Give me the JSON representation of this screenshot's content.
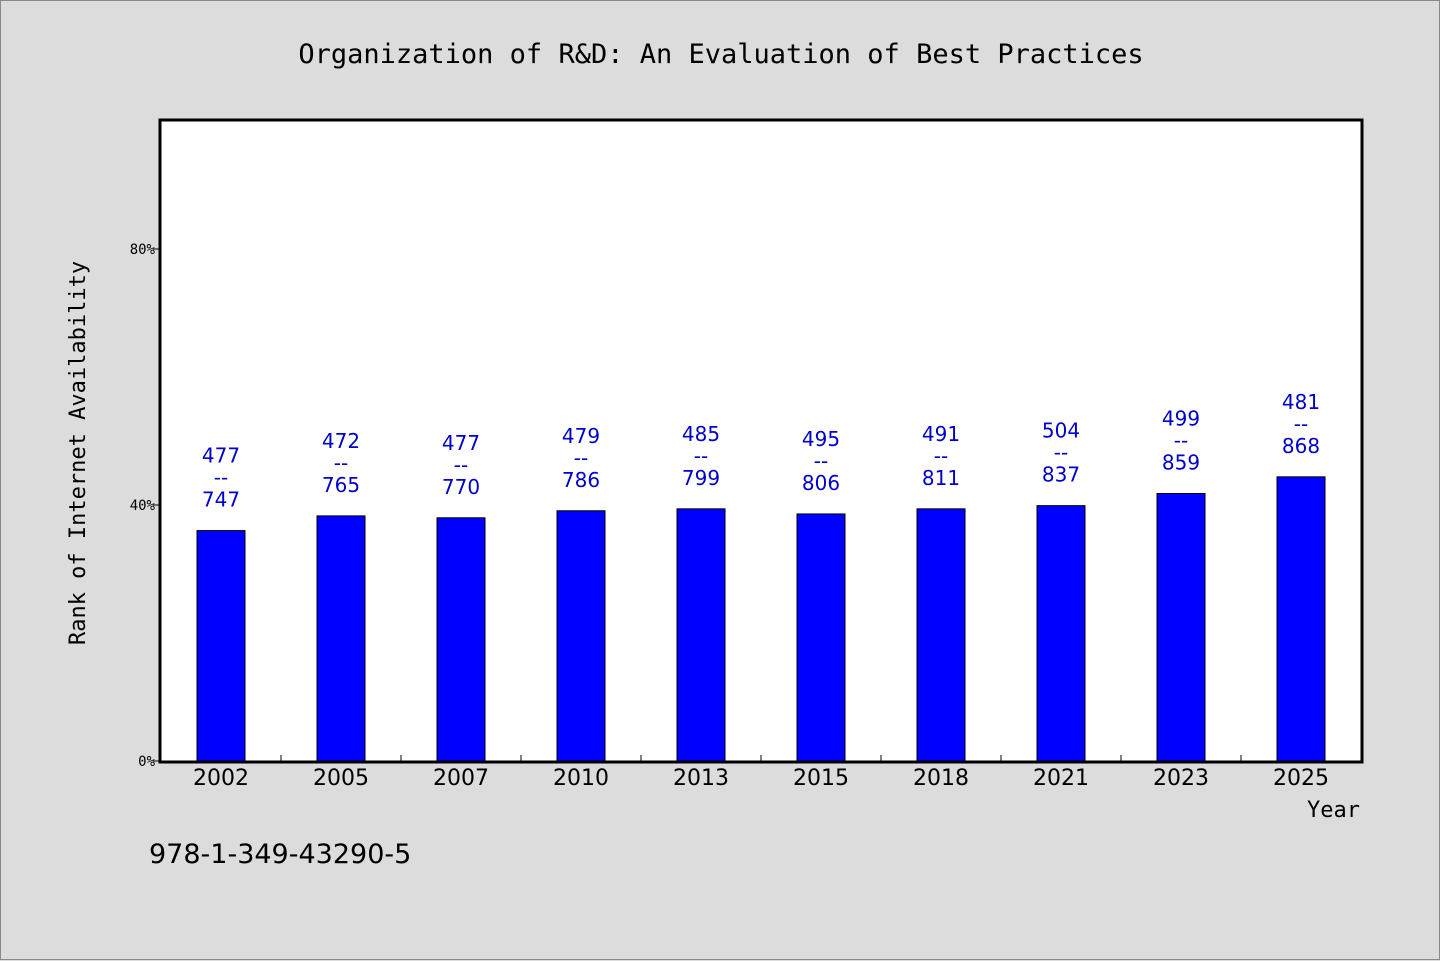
{
  "chart_data": {
    "type": "bar",
    "title": "Organization of R&D: An Evaluation of Best Practices",
    "xlabel": "Year",
    "ylabel": "Rank of Internet Availability",
    "categories": [
      "2002",
      "2005",
      "2007",
      "2010",
      "2013",
      "2015",
      "2018",
      "2021",
      "2023",
      "2025"
    ],
    "values": [
      36,
      38.3,
      38,
      39.1,
      39.4,
      38.6,
      39.4,
      39.9,
      41.8,
      44.4
    ],
    "data_labels": [
      {
        "top": "477",
        "sep": "--",
        "bottom": "747"
      },
      {
        "top": "472",
        "sep": "--",
        "bottom": "765"
      },
      {
        "top": "477",
        "sep": "--",
        "bottom": "770"
      },
      {
        "top": "479",
        "sep": "--",
        "bottom": "786"
      },
      {
        "top": "485",
        "sep": "--",
        "bottom": "799"
      },
      {
        "top": "495",
        "sep": "--",
        "bottom": "806"
      },
      {
        "top": "491",
        "sep": "--",
        "bottom": "811"
      },
      {
        "top": "504",
        "sep": "--",
        "bottom": "837"
      },
      {
        "top": "499",
        "sep": "--",
        "bottom": "859"
      },
      {
        "top": "481",
        "sep": "--",
        "bottom": "868"
      }
    ],
    "y_ticks": [
      {
        "value": 0,
        "label": "0%"
      },
      {
        "value": 40,
        "label": "40%"
      },
      {
        "value": 80,
        "label": "80%"
      }
    ],
    "ylim": [
      0,
      100
    ],
    "grid": false,
    "bar_color": "#0000ff",
    "label_color": "#0000cc"
  },
  "footer_text": "978-1-349-43290-5"
}
